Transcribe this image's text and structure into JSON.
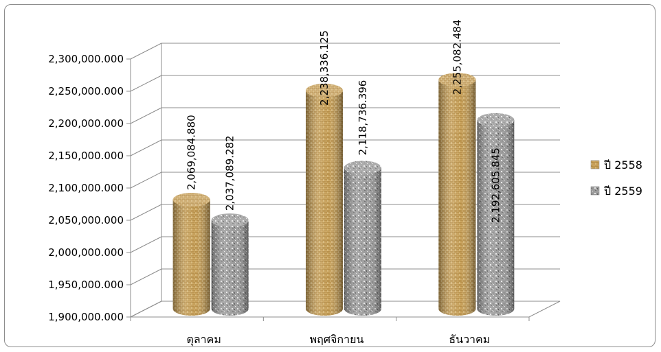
{
  "chart_data": {
    "type": "bar",
    "style": "3d-cylinder",
    "categories": [
      "ตุลาคม",
      "พฤศจิกายน",
      "ธันวาคม"
    ],
    "series": [
      {
        "name": "ปี 2558",
        "values": [
          2069084.88,
          2238336.125,
          2255082.484
        ],
        "labels": [
          "2,069,084.880",
          "2,238,336.125",
          "2,255,082.484"
        ],
        "texture": "woven",
        "color": "#c9a25c"
      },
      {
        "name": "ปี 2559",
        "values": [
          2037089.282,
          2118736.396,
          2192605.845
        ],
        "labels": [
          "2,037,089.282",
          "2,118,736.396",
          "2,192,605.845"
        ],
        "texture": "granite",
        "color": "#9a9a9a"
      }
    ],
    "ylim": [
      1900000,
      2300000
    ],
    "yticks": [
      1900000,
      1950000,
      2000000,
      2050000,
      2100000,
      2150000,
      2200000,
      2250000,
      2300000
    ],
    "ytick_labels": [
      "1,900,000.000",
      "1,950,000.000",
      "2,000,000.000",
      "2,050,000.000",
      "2,100,000.000",
      "2,150,000.000",
      "2,200,000.000",
      "2,250,000.000",
      "2,300,000.000"
    ],
    "grid": true,
    "legend_position": "right",
    "title": "",
    "xlabel": "",
    "ylabel": ""
  }
}
